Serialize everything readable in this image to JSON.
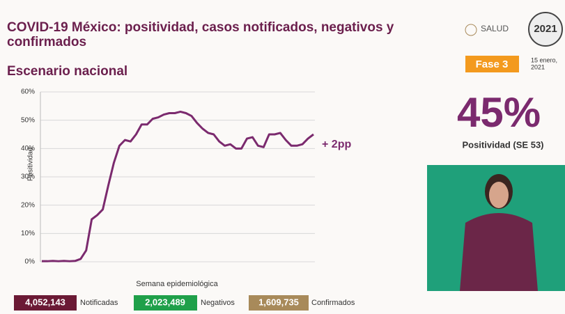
{
  "header": {
    "title_line1": "COVID-19 México: positividad, casos notificados, negativos y",
    "title_line2": "confirmados",
    "subtitle": "Escenario nacional",
    "logo": "SALUD",
    "year": "2021",
    "phase": "Fase 3",
    "date_line1": "15 enero,",
    "date_line2": "2021"
  },
  "kpi": {
    "value": "45%",
    "label": "Positividad (SE 53)"
  },
  "totals": [
    {
      "value": "4,052,143",
      "label": "Notificadas"
    },
    {
      "value": "2,023,489",
      "label": "Negativos"
    },
    {
      "value": "1,609,735",
      "label": "Confirmados"
    }
  ],
  "chart_data": {
    "type": "line",
    "y_label": "Positividad",
    "x_label": "Semana epidemiológica",
    "annotation": "+ 2pp",
    "categories": [
      null,
      null,
      null,
      null,
      null,
      null,
      null,
      null,
      null,
      null,
      null,
      null,
      null,
      null,
      null,
      null,
      null,
      null,
      null,
      null,
      null,
      null,
      null,
      null,
      null,
      null,
      null,
      null,
      null,
      null,
      null,
      null,
      null,
      null,
      null,
      null,
      null,
      null,
      null,
      null,
      null,
      null,
      null,
      null,
      null,
      null,
      null,
      null,
      null,
      null
    ],
    "series": [
      {
        "name": "Positividad",
        "color": "#7b2a6e",
        "values": [
          0.2,
          0.2,
          0.3,
          0.2,
          0.3,
          0.2,
          0.3,
          1,
          4,
          15,
          16.5,
          18.5,
          27,
          35,
          41,
          43,
          42.5,
          45,
          48.5,
          48.5,
          50.5,
          51,
          52,
          52.5,
          52.5,
          53,
          52.5,
          51.5,
          49,
          47,
          45.5,
          45,
          42.5,
          41,
          41.5,
          40,
          40,
          43.5,
          44,
          41,
          40.5,
          45,
          45,
          45.5,
          43,
          41,
          41,
          41.5,
          43.5,
          45
        ]
      }
    ],
    "ylim": [
      0,
      60
    ],
    "yticks": [
      {
        "value": 0,
        "label": "0%"
      },
      {
        "value": 10,
        "label": "10%"
      },
      {
        "value": 20,
        "label": "20%"
      },
      {
        "value": 30,
        "label": "30%"
      },
      {
        "value": 40,
        "label": "40%"
      },
      {
        "value": 50,
        "label": "50%"
      },
      {
        "value": 60,
        "label": "60%"
      }
    ],
    "grid": true
  }
}
